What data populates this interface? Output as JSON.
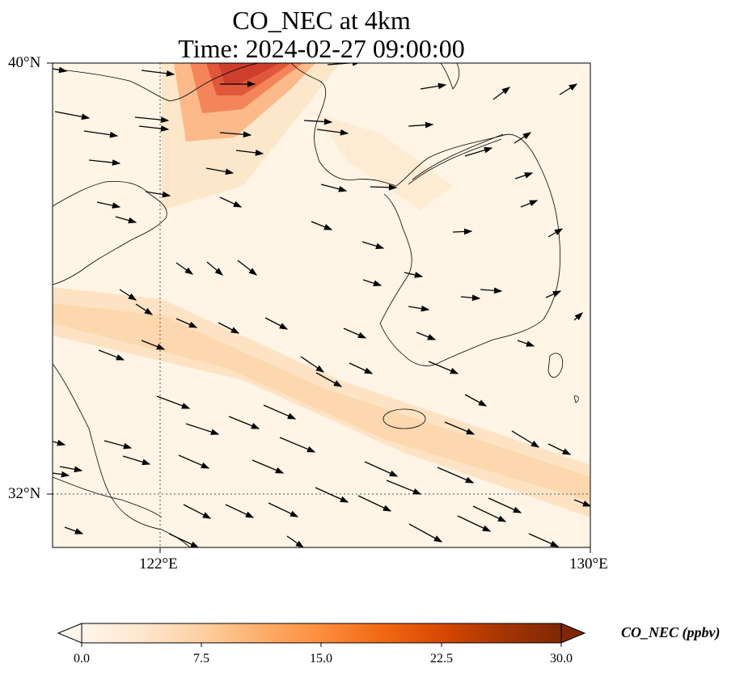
{
  "title_line1": "CO_NEC at 4km",
  "title_line2": "Time: 2024-02-27 09:00:00",
  "map": {
    "lon_range": [
      119,
      130
    ],
    "lat_range": [
      31,
      40
    ],
    "lat_ticks": [
      "40°N",
      "32°N"
    ],
    "lon_ticks": [
      "122°E",
      "130°E"
    ],
    "gridlines": {
      "lon": 122,
      "lat": 32
    }
  },
  "colorbar": {
    "label": "CO_NEC (ppbv)",
    "min": 0.0,
    "max": 30.0,
    "ticks": [
      "0.0",
      "7.5",
      "15.0",
      "22.5",
      "30.0"
    ],
    "colormap": [
      "#fff5eb",
      "#fee6ce",
      "#fdd0a2",
      "#fdae6b",
      "#fd8d3c",
      "#f16913",
      "#d94801",
      "#a63603",
      "#7f2704"
    ]
  }
}
